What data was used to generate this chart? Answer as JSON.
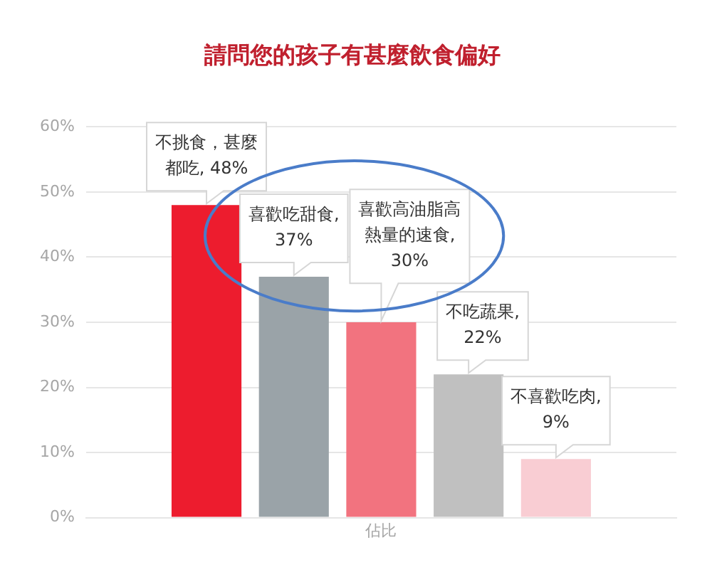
{
  "chart_data": {
    "type": "bar",
    "title": "請問您的孩子有甚麼飲食偏好",
    "categories": [
      "佔比"
    ],
    "series": [
      {
        "color": "#ed1c2e",
        "values": [
          48
        ],
        "value_labels": [
          "不挑食，甚麼都吃, 48%"
        ]
      },
      {
        "color": "#9aa3a8",
        "values": [
          37
        ],
        "value_labels": [
          "喜歡吃甜食, 37%"
        ]
      },
      {
        "color": "#f2737f",
        "values": [
          30
        ],
        "value_labels": [
          "喜歡高油脂高熱量的速食, 30%"
        ]
      },
      {
        "color": "#c0c0c0",
        "values": [
          22
        ],
        "value_labels": [
          "不吃蔬果, 22%"
        ]
      },
      {
        "color": "#f9cdd3",
        "values": [
          9
        ],
        "value_labels": [
          "不喜歡吃肉, 9%"
        ]
      }
    ],
    "ylim": [
      0,
      60
    ],
    "yticks": [
      {
        "value": 0,
        "label": "0%"
      },
      {
        "value": 10,
        "label": "10%"
      },
      {
        "value": 20,
        "label": "20%"
      },
      {
        "value": 30,
        "label": "30%"
      },
      {
        "value": 40,
        "label": "40%"
      },
      {
        "value": 50,
        "label": "50%"
      },
      {
        "value": 60,
        "label": "60%"
      }
    ],
    "grid": "y",
    "legend": false
  }
}
